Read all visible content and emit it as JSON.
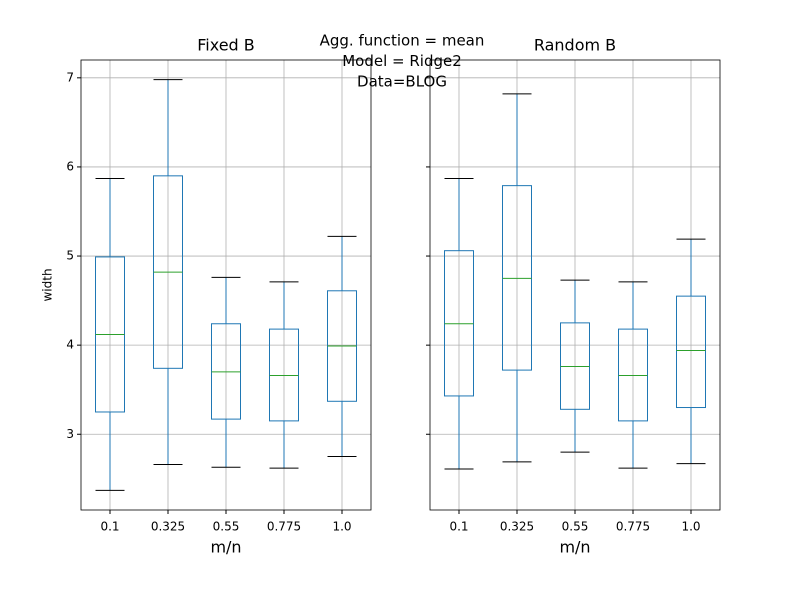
{
  "suptitle": [
    "Agg. function = mean",
    "Model = Ridge2",
    "Data=BLOG"
  ],
  "chart_data": [
    {
      "type": "box",
      "title": "Fixed B",
      "xlabel": "m/n",
      "ylabel": "width",
      "categories": [
        "0.1",
        "0.325",
        "0.55",
        "0.775",
        "1.0"
      ],
      "boxes": [
        {
          "whislo": 2.37,
          "q1": 3.25,
          "med": 4.12,
          "q3": 4.99,
          "whishi": 5.87
        },
        {
          "whislo": 2.66,
          "q1": 3.74,
          "med": 4.82,
          "q3": 5.9,
          "whishi": 6.98
        },
        {
          "whislo": 2.63,
          "q1": 3.17,
          "med": 3.7,
          "q3": 4.24,
          "whishi": 4.76
        },
        {
          "whislo": 2.62,
          "q1": 3.15,
          "med": 3.66,
          "q3": 4.18,
          "whishi": 4.71
        },
        {
          "whislo": 2.75,
          "q1": 3.37,
          "med": 3.99,
          "q3": 4.61,
          "whishi": 5.22
        }
      ],
      "box_color": "#1f77b4",
      "median_color": "#2ca02c",
      "cap_color": "#000000",
      "ylim": [
        2.15,
        7.2
      ],
      "yticks": [
        3,
        4,
        5,
        6,
        7
      ],
      "grid": true
    },
    {
      "type": "box",
      "title": "Random B",
      "xlabel": "m/n",
      "sharey": true,
      "categories": [
        "0.1",
        "0.325",
        "0.55",
        "0.775",
        "1.0"
      ],
      "boxes": [
        {
          "whislo": 2.61,
          "q1": 3.43,
          "med": 4.24,
          "q3": 5.06,
          "whishi": 5.87
        },
        {
          "whislo": 2.69,
          "q1": 3.72,
          "med": 4.75,
          "q3": 5.79,
          "whishi": 6.82
        },
        {
          "whislo": 2.8,
          "q1": 3.28,
          "med": 3.76,
          "q3": 4.25,
          "whishi": 4.73
        },
        {
          "whislo": 2.62,
          "q1": 3.15,
          "med": 3.66,
          "q3": 4.18,
          "whishi": 4.71
        },
        {
          "whislo": 2.67,
          "q1": 3.3,
          "med": 3.94,
          "q3": 4.55,
          "whishi": 5.19
        }
      ],
      "box_color": "#1f77b4",
      "median_color": "#2ca02c",
      "cap_color": "#000000",
      "ylim": [
        2.15,
        7.2
      ],
      "grid": true
    }
  ]
}
